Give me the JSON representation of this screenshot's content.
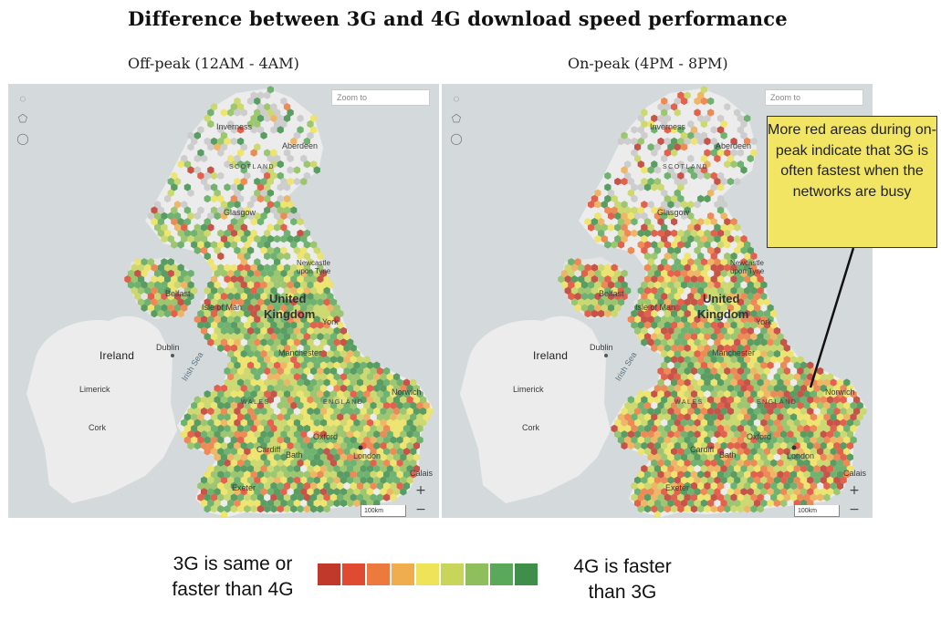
{
  "title": "Difference between 3G and 4G download speed performance",
  "maps": [
    {
      "id": "off-peak",
      "subtitle": "Off-peak (12AM - 4AM)",
      "zoom_placeholder": "Zoom to",
      "scale": "100km",
      "labels": {
        "inverness": "Inverness",
        "aberdeen": "Aberdeen",
        "scotland": "SCOTLAND",
        "glasgow": "Glasgow",
        "newcastle": "Newcastle upon Tyne",
        "belfast": "Belfast",
        "isle_of_man": "Isle of Man",
        "uk_line1": "United",
        "uk_line2": "Kingdom",
        "york": "York",
        "ireland": "Ireland",
        "dublin": "Dublin",
        "irish_sea": "Irish Sea",
        "manchester": "Manchester",
        "wales": "WALES",
        "england": "ENGLAND",
        "norwich": "Norwich",
        "limerick": "Limerick",
        "cork": "Cork",
        "cardiff": "Cardiff",
        "bath": "Bath",
        "oxford": "Oxford",
        "london": "London",
        "calais": "Calais",
        "exeter": "Exeter"
      }
    },
    {
      "id": "on-peak",
      "subtitle": "On-peak (4PM - 8PM)",
      "zoom_placeholder": "Zoom to",
      "scale": "100km",
      "labels": {
        "inverness": "Inverness",
        "aberdeen": "Aberdeen",
        "scotland": "SCOTLAND",
        "glasgow": "Glasgow",
        "newcastle": "Newcastle upon Tyne",
        "belfast": "Belfast",
        "isle_of_man": "Isle of Man",
        "uk_line1": "United",
        "uk_line2": "Kingdom",
        "york": "York",
        "ireland": "Ireland",
        "dublin": "Dublin",
        "irish_sea": "Irish Sea",
        "manchester": "Manchester",
        "wales": "WALES",
        "england": "ENGLAND",
        "norwich": "Norwich",
        "limerick": "Limerick",
        "cork": "Cork",
        "cardiff": "Cardiff",
        "bath": "Bath",
        "oxford": "Oxford",
        "london": "London",
        "calais": "Calais",
        "exeter": "Exeter"
      }
    }
  ],
  "callout": "More red areas during on-peak indicate that 3G is often fastest when the networks are busy",
  "legend": {
    "left_line1": "3G is same or",
    "left_line2": "faster than 4G",
    "right_line1": "4G is faster",
    "right_line2": "than 3G",
    "colors": [
      "#c0392b",
      "#e04a33",
      "#ec7a3c",
      "#f0ad4e",
      "#efe35a",
      "#c7d65b",
      "#8fbf5c",
      "#5aa95a",
      "#3f8f4b"
    ]
  },
  "colors": {
    "sea": "#d4dadc",
    "land": "#ececec",
    "hex_grey": "#c8c8c8"
  }
}
